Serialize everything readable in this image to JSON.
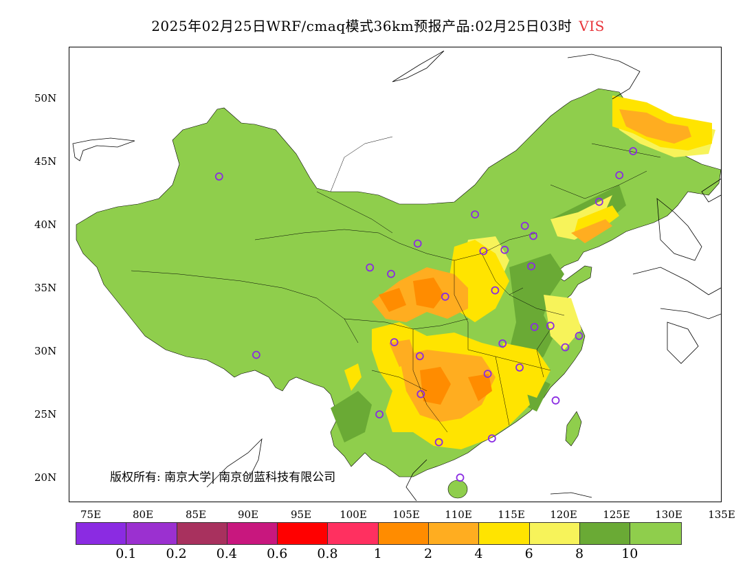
{
  "title": {
    "main": "2025年02月25日WRF/cmaq模式36km预报产品:02月25日03时",
    "variable": "VIS",
    "variable_color": "#e8343a"
  },
  "map": {
    "lat_labels": [
      "50N",
      "45N",
      "40N",
      "35N",
      "30N",
      "25N",
      "20N"
    ],
    "lon_labels": [
      "75E",
      "80E",
      "85E",
      "90E",
      "95E",
      "100E",
      "105E",
      "110E",
      "115E",
      "120E",
      "125E",
      "130E",
      "135E"
    ],
    "copyright": "版权所有: 南京大学| 南京创蓝科技有限公司",
    "station_marker_color": "#8a2be2",
    "stations": [
      {
        "lon": 87.6,
        "lat": 43.8
      },
      {
        "lon": 91.1,
        "lat": 29.7
      },
      {
        "lon": 101.8,
        "lat": 36.6
      },
      {
        "lon": 103.8,
        "lat": 36.1
      },
      {
        "lon": 106.3,
        "lat": 38.5
      },
      {
        "lon": 111.7,
        "lat": 40.8
      },
      {
        "lon": 112.5,
        "lat": 37.9
      },
      {
        "lon": 114.5,
        "lat": 38.0
      },
      {
        "lon": 116.4,
        "lat": 39.9
      },
      {
        "lon": 117.2,
        "lat": 39.1
      },
      {
        "lon": 117.0,
        "lat": 36.7
      },
      {
        "lon": 113.6,
        "lat": 34.8
      },
      {
        "lon": 108.9,
        "lat": 34.3
      },
      {
        "lon": 117.3,
        "lat": 31.9
      },
      {
        "lon": 118.8,
        "lat": 32.0
      },
      {
        "lon": 120.2,
        "lat": 30.3
      },
      {
        "lon": 121.5,
        "lat": 31.2
      },
      {
        "lon": 114.3,
        "lat": 30.6
      },
      {
        "lon": 112.9,
        "lat": 28.2
      },
      {
        "lon": 115.9,
        "lat": 28.7
      },
      {
        "lon": 119.3,
        "lat": 26.1
      },
      {
        "lon": 113.3,
        "lat": 23.1
      },
      {
        "lon": 108.3,
        "lat": 22.8
      },
      {
        "lon": 110.3,
        "lat": 20.0
      },
      {
        "lon": 106.6,
        "lat": 26.6
      },
      {
        "lon": 102.7,
        "lat": 25.0
      },
      {
        "lon": 104.1,
        "lat": 30.7
      },
      {
        "lon": 106.5,
        "lat": 29.6
      },
      {
        "lon": 123.4,
        "lat": 41.8
      },
      {
        "lon": 125.3,
        "lat": 43.9
      },
      {
        "lon": 126.6,
        "lat": 45.8
      }
    ]
  },
  "colorbar": {
    "colors": [
      "#8b2be2",
      "#9b30d0",
      "#a8315e",
      "#c8177e",
      "#ff0000",
      "#ff3060",
      "#ff8c00",
      "#ffad20",
      "#ffe400",
      "#f7f35a",
      "#6aaa35",
      "#8fce4c"
    ],
    "labels": [
      "0.1",
      "0.2",
      "0.4",
      "0.6",
      "0.8",
      "1",
      "2",
      "4",
      "6",
      "8",
      "10"
    ]
  }
}
